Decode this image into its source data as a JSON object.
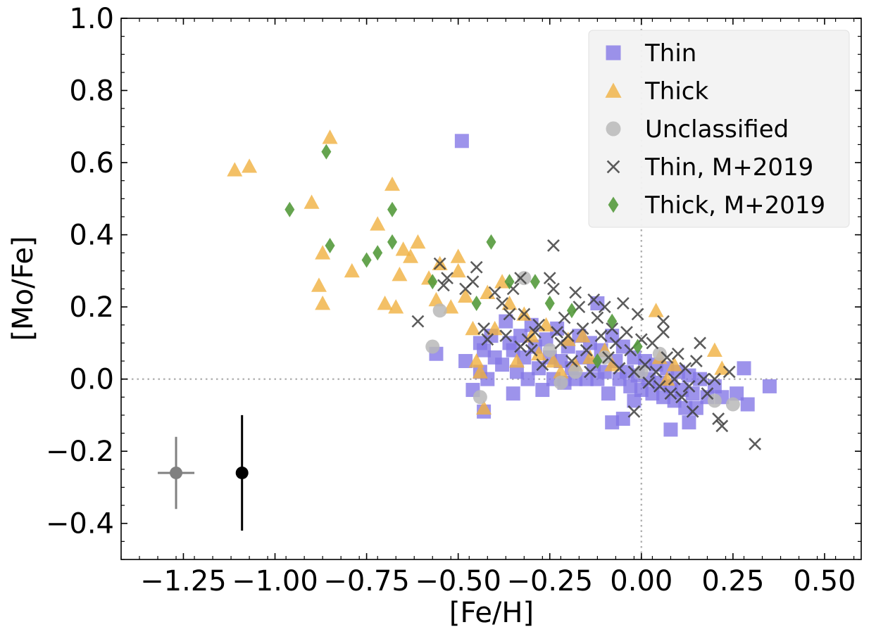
{
  "chart_data": {
    "type": "scatter",
    "xlabel": "[Fe/H]",
    "ylabel": "[Mo/Fe]",
    "xlim": [
      -1.42,
      0.6
    ],
    "ylim": [
      -0.5,
      1.0
    ],
    "x_ticks": [
      -1.25,
      -1.0,
      -0.75,
      -0.5,
      -0.25,
      0.0,
      0.25,
      0.5
    ],
    "x_tick_labels": [
      "−1.25",
      "−1.00",
      "−0.75",
      "−0.50",
      "−0.25",
      "0.00",
      "0.25",
      "0.50"
    ],
    "y_ticks": [
      -0.4,
      -0.2,
      0.0,
      0.2,
      0.4,
      0.6,
      0.8,
      1.0
    ],
    "y_tick_labels": [
      "−0.4",
      "−0.2",
      "0.0",
      "0.2",
      "0.4",
      "0.6",
      "0.8",
      "1.0"
    ],
    "reference_lines": {
      "x": 0.0,
      "y": 0.0,
      "style": "dotted",
      "color": "#b0b0b0"
    },
    "legend": {
      "placement": "top-right"
    },
    "series": [
      {
        "name": "Thin",
        "marker": "square",
        "color": "#8478e6",
        "points": [
          [
            -0.49,
            0.66
          ],
          [
            -0.56,
            0.07
          ],
          [
            -0.46,
            -0.03
          ],
          [
            -0.44,
            0.1
          ],
          [
            -0.43,
            0.08
          ],
          [
            -0.42,
            0.0
          ],
          [
            -0.43,
            -0.09
          ],
          [
            -0.41,
            0.12
          ],
          [
            -0.4,
            0.06
          ],
          [
            -0.38,
            0.04
          ],
          [
            -0.37,
            0.16
          ],
          [
            -0.36,
            0.1
          ],
          [
            -0.35,
            0.08
          ],
          [
            -0.34,
            0.02
          ],
          [
            -0.33,
            0.12
          ],
          [
            -0.32,
            0.06
          ],
          [
            -0.31,
            0.0
          ],
          [
            -0.3,
            0.15
          ],
          [
            -0.29,
            0.09
          ],
          [
            -0.28,
            0.03
          ],
          [
            -0.27,
            -0.03
          ],
          [
            -0.26,
            0.11
          ],
          [
            -0.25,
            0.06
          ],
          [
            -0.24,
            0.0
          ],
          [
            -0.23,
            0.14
          ],
          [
            -0.22,
            0.05
          ],
          [
            -0.21,
            -0.01
          ],
          [
            -0.2,
            0.09
          ],
          [
            -0.19,
            0.03
          ],
          [
            -0.18,
            0.0
          ],
          [
            -0.17,
            0.12
          ],
          [
            -0.16,
            0.06
          ],
          [
            -0.15,
            0.0
          ],
          [
            -0.14,
            0.1
          ],
          [
            -0.13,
            0.04
          ],
          [
            -0.12,
            0.21
          ],
          [
            -0.12,
            0.0
          ],
          [
            -0.11,
            0.08
          ],
          [
            -0.1,
            0.02
          ],
          [
            -0.09,
            -0.04
          ],
          [
            -0.08,
            0.12
          ],
          [
            -0.07,
            0.05
          ],
          [
            -0.06,
            0.0
          ],
          [
            -0.05,
            0.09
          ],
          [
            -0.04,
            0.02
          ],
          [
            -0.03,
            -0.02
          ],
          [
            -0.02,
            0.06
          ],
          [
            -0.01,
            0.01
          ],
          [
            0.0,
            -0.03
          ],
          [
            0.01,
            0.05
          ],
          [
            0.02,
            0.0
          ],
          [
            0.03,
            -0.04
          ],
          [
            0.04,
            0.04
          ],
          [
            0.05,
            -0.01
          ],
          [
            0.06,
            -0.05
          ],
          [
            0.07,
            0.03
          ],
          [
            0.08,
            -0.02
          ],
          [
            0.09,
            -0.06
          ],
          [
            0.1,
            0.02
          ],
          [
            0.11,
            -0.03
          ],
          [
            0.12,
            -0.08
          ],
          [
            0.13,
            0.01
          ],
          [
            0.14,
            -0.04
          ],
          [
            0.15,
            -0.08
          ],
          [
            0.16,
            0.0
          ],
          [
            0.2,
            -0.02
          ],
          [
            0.22,
            -0.05
          ],
          [
            0.26,
            -0.04
          ],
          [
            0.28,
            0.03
          ],
          [
            0.29,
            -0.07
          ],
          [
            0.35,
            -0.02
          ],
          [
            -0.08,
            -0.12
          ],
          [
            -0.05,
            -0.11
          ],
          [
            0.08,
            -0.14
          ],
          [
            0.13,
            -0.12
          ],
          [
            -0.35,
            -0.04
          ],
          [
            -0.48,
            0.05
          ],
          [
            -0.02,
            -0.06
          ],
          [
            0.18,
            -0.05
          ],
          [
            -0.44,
            0.02
          ]
        ]
      },
      {
        "name": "Thick",
        "marker": "triangle",
        "color": "#f0b040",
        "points": [
          [
            -0.85,
            0.67
          ],
          [
            -1.11,
            0.58
          ],
          [
            -1.07,
            0.59
          ],
          [
            -0.9,
            0.49
          ],
          [
            -0.68,
            0.54
          ],
          [
            -0.72,
            0.43
          ],
          [
            -0.87,
            0.35
          ],
          [
            -0.61,
            0.38
          ],
          [
            -0.55,
            0.32
          ],
          [
            -0.5,
            0.34
          ],
          [
            -0.88,
            0.26
          ],
          [
            -0.87,
            0.21
          ],
          [
            -0.79,
            0.3
          ],
          [
            -0.7,
            0.21
          ],
          [
            -0.67,
            0.2
          ],
          [
            -0.66,
            0.29
          ],
          [
            -0.65,
            0.36
          ],
          [
            -0.63,
            0.34
          ],
          [
            -0.56,
            0.22
          ],
          [
            -0.52,
            0.2
          ],
          [
            -0.5,
            0.3
          ],
          [
            -0.48,
            0.23
          ],
          [
            -0.46,
            0.14
          ],
          [
            -0.45,
            0.05
          ],
          [
            -0.44,
            0.02
          ],
          [
            -0.42,
            0.24
          ],
          [
            -0.4,
            0.14
          ],
          [
            -0.38,
            0.27
          ],
          [
            -0.36,
            0.21
          ],
          [
            -0.34,
            0.05
          ],
          [
            -0.32,
            0.18
          ],
          [
            -0.3,
            0.12
          ],
          [
            -0.28,
            0.07
          ],
          [
            -0.26,
            0.15
          ],
          [
            -0.24,
            0.05
          ],
          [
            -0.22,
            0.02
          ],
          [
            -0.2,
            0.11
          ],
          [
            -0.18,
            0.04
          ],
          [
            -0.16,
            0.12
          ],
          [
            -0.14,
            0.06
          ],
          [
            -0.1,
            0.08
          ],
          [
            -0.08,
            0.04
          ],
          [
            0.04,
            0.19
          ],
          [
            0.05,
            0.06
          ],
          [
            0.07,
            0.0
          ],
          [
            0.09,
            0.04
          ],
          [
            0.2,
            0.08
          ],
          [
            0.22,
            0.03
          ],
          [
            -0.43,
            -0.08
          ],
          [
            -0.58,
            0.28
          ]
        ]
      },
      {
        "name": "Unclassified",
        "marker": "circle",
        "color": "#b8b8b8",
        "points": [
          [
            -0.55,
            0.19
          ],
          [
            -0.57,
            0.09
          ],
          [
            -0.44,
            -0.05
          ],
          [
            -0.32,
            0.28
          ],
          [
            -0.25,
            0.08
          ],
          [
            -0.22,
            -0.01
          ],
          [
            -0.18,
            0.02
          ],
          [
            -0.1,
            0.06
          ],
          [
            0.05,
            0.07
          ],
          [
            0.2,
            -0.06
          ],
          [
            0.25,
            -0.07
          ],
          [
            0.0,
            0.02
          ]
        ]
      },
      {
        "name": "Thin, M+2019",
        "marker": "x",
        "color": "#404040",
        "points": [
          [
            -0.24,
            0.37
          ],
          [
            -0.55,
            0.32
          ],
          [
            -0.53,
            0.28
          ],
          [
            -0.61,
            0.16
          ],
          [
            -0.54,
            0.26
          ],
          [
            -0.48,
            0.25
          ],
          [
            -0.45,
            0.31
          ],
          [
            -0.46,
            0.27
          ],
          [
            -0.43,
            0.14
          ],
          [
            -0.42,
            0.11
          ],
          [
            -0.4,
            0.24
          ],
          [
            -0.38,
            0.21
          ],
          [
            -0.36,
            0.18
          ],
          [
            -0.35,
            0.25
          ],
          [
            -0.33,
            0.28
          ],
          [
            -0.32,
            0.18
          ],
          [
            -0.31,
            0.11
          ],
          [
            -0.3,
            0.08
          ],
          [
            -0.28,
            0.15
          ],
          [
            -0.25,
            0.28
          ],
          [
            -0.24,
            0.25
          ],
          [
            -0.23,
            0.13
          ],
          [
            -0.22,
            0.1
          ],
          [
            -0.21,
            0.17
          ],
          [
            -0.2,
            0.12
          ],
          [
            -0.19,
            0.05
          ],
          [
            -0.18,
            0.24
          ],
          [
            -0.17,
            0.2
          ],
          [
            -0.16,
            0.14
          ],
          [
            -0.15,
            0.08
          ],
          [
            -0.14,
            0.02
          ],
          [
            -0.13,
            0.22
          ],
          [
            -0.12,
            0.17
          ],
          [
            -0.11,
            0.12
          ],
          [
            -0.1,
            0.2
          ],
          [
            -0.09,
            0.06
          ],
          [
            -0.08,
            0.14
          ],
          [
            -0.07,
            0.1
          ],
          [
            -0.06,
            0.03
          ],
          [
            -0.05,
            0.21
          ],
          [
            -0.04,
            0.13
          ],
          [
            -0.03,
            0.08
          ],
          [
            -0.02,
            0.02
          ],
          [
            -0.01,
            0.18
          ],
          [
            0.0,
            0.11
          ],
          [
            0.01,
            0.04
          ],
          [
            0.02,
            -0.01
          ],
          [
            0.03,
            0.1
          ],
          [
            0.04,
            0.02
          ],
          [
            0.05,
            -0.02
          ],
          [
            0.06,
            0.13
          ],
          [
            0.07,
            0.06
          ],
          [
            0.08,
            -0.04
          ],
          [
            0.09,
            0.0
          ],
          [
            0.1,
            0.07
          ],
          [
            0.11,
            -0.05
          ],
          [
            0.12,
            0.03
          ],
          [
            0.13,
            -0.02
          ],
          [
            0.14,
            -0.09
          ],
          [
            0.15,
            0.05
          ],
          [
            0.16,
            0.1
          ],
          [
            0.17,
            0.0
          ],
          [
            0.18,
            -0.04
          ],
          [
            0.2,
            0.0
          ],
          [
            0.21,
            -0.11
          ],
          [
            0.22,
            -0.13
          ],
          [
            0.24,
            0.02
          ],
          [
            0.31,
            -0.18
          ],
          [
            -0.02,
            -0.09
          ],
          [
            0.06,
            0.16
          ],
          [
            -0.29,
            0.13
          ],
          [
            -0.27,
            0.04
          ],
          [
            -0.33,
            0.09
          ],
          [
            -0.37,
            0.12
          ]
        ]
      },
      {
        "name": "Thick, M+2019",
        "marker": "diamond",
        "color": "#549a3c",
        "points": [
          [
            -0.86,
            0.63
          ],
          [
            -0.96,
            0.47
          ],
          [
            -0.85,
            0.37
          ],
          [
            -0.75,
            0.33
          ],
          [
            -0.72,
            0.35
          ],
          [
            -0.68,
            0.47
          ],
          [
            -0.68,
            0.38
          ],
          [
            -0.57,
            0.27
          ],
          [
            -0.45,
            0.21
          ],
          [
            -0.41,
            0.38
          ],
          [
            -0.36,
            0.27
          ],
          [
            -0.29,
            0.27
          ],
          [
            -0.25,
            0.21
          ],
          [
            -0.19,
            0.19
          ],
          [
            -0.12,
            0.05
          ],
          [
            -0.08,
            0.16
          ],
          [
            -0.01,
            0.09
          ]
        ]
      }
    ],
    "error_bars": [
      {
        "x": -1.27,
        "y": -0.26,
        "xerr": 0.05,
        "yerr": 0.1,
        "color": "#808080"
      },
      {
        "x": -1.09,
        "y": -0.26,
        "xerr": 0.0,
        "yerr": 0.16,
        "color": "#000000"
      }
    ]
  }
}
